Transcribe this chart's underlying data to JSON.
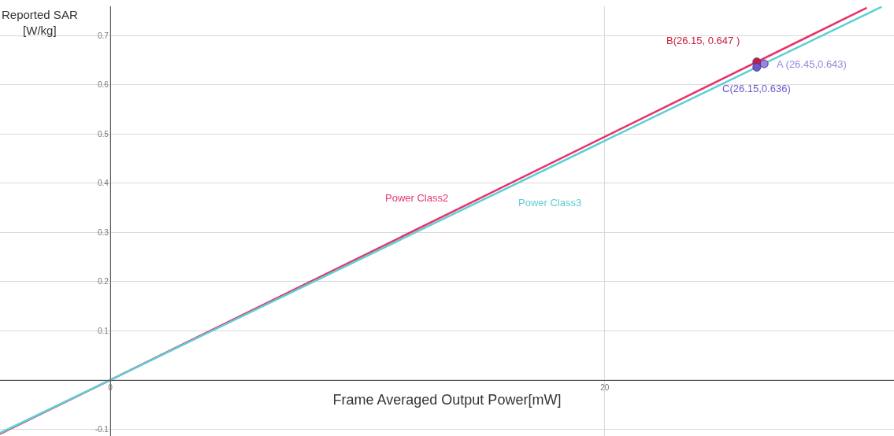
{
  "chart_data": {
    "type": "line",
    "xlabel": "Frame Averaged Output Power[mW]",
    "ylabel": "Reported SAR\n[W/kg]",
    "xlim": [
      -4.46,
      31.7
    ],
    "ylim": [
      -0.114,
      0.76
    ],
    "xticks": [
      0,
      20
    ],
    "yticks": [
      -0.1,
      {
        "value": 0,
        "label": null
      },
      0.1,
      0.2,
      0.3,
      0.4,
      0.5,
      0.6,
      0.7
    ],
    "grid": true,
    "line_style": "solid",
    "series": [
      {
        "name": "Power Class2",
        "color": "#e8336a",
        "x": [
          -4.46,
          0,
          14,
          30.6
        ],
        "values": [
          -0.11,
          0,
          0.346,
          0.757
        ]
      },
      {
        "name": "Power Class3",
        "color": "#5ccfd6",
        "x": [
          -4.46,
          0,
          16,
          31.2
        ],
        "values": [
          -0.108,
          0,
          0.389,
          0.759
        ]
      },
      {
        "type": "scatter",
        "marker": "circle",
        "x": [
          26.45,
          26.15,
          26.15
        ],
        "values": [
          0.643,
          0.647,
          0.636
        ],
        "colors": [
          "#9a84e0",
          "#c81e3c",
          "#6a5acd"
        ]
      }
    ],
    "annotations": [
      "A (26.45,0.643)",
      "B(26.15, 0.647 )",
      "C(26.15,0.636)"
    ]
  }
}
